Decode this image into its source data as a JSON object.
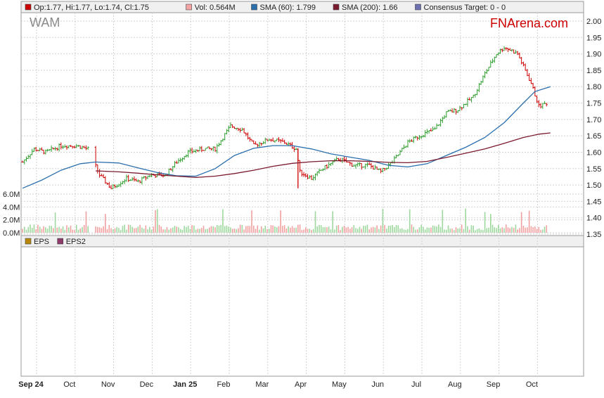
{
  "ticker": "WAM",
  "brand": "FNArena.com",
  "price_legend": [
    {
      "label": "Op:1.77, Hi:1.77, Lo:1.74, Cl:1.75",
      "color": "#cc0000"
    },
    {
      "label": "Vol: 0.564M",
      "color": "#f4a3a3"
    },
    {
      "label": "SMA (60): 1.799",
      "color": "#2b6fad"
    },
    {
      "label": "SMA (200): 1.66",
      "color": "#7a1a2e"
    },
    {
      "label": "Consensus Target: 0 - 0",
      "color": "#6c6fb0"
    }
  ],
  "eps_legend": [
    {
      "label": "EPS",
      "color": "#b8860b"
    },
    {
      "label": "EPS2",
      "color": "#8e3a6a"
    }
  ],
  "colors": {
    "up": "#2e9e2e",
    "down": "#cc0000",
    "sma60": "#2b6fad",
    "sma200": "#7a1a2e",
    "grid": "#d2d2d2",
    "vol_up": "#9fd89f",
    "vol_down": "#f1a1a1"
  },
  "chart_data": {
    "type": "line",
    "title": "WAM",
    "x_labels": [
      "Sep 24",
      "Oct",
      "Nov",
      "Dec",
      "Jan 25",
      "Feb",
      "Mar",
      "Apr",
      "May",
      "Jun",
      "Jul",
      "Aug",
      "Sep",
      "Oct"
    ],
    "x_bold_labels": [
      "Sep 24",
      "Jan 25"
    ],
    "y_ticks": [
      "2.00",
      "1.95",
      "1.90",
      "1.85",
      "1.80",
      "1.75",
      "1.70",
      "1.65",
      "1.60",
      "1.55",
      "1.50",
      "1.45",
      "1.40",
      "1.35"
    ],
    "ylim": [
      1.35,
      2.0
    ],
    "volume_ticks": [
      "6.0M",
      "4.0M",
      "2.0M",
      "0.0M"
    ],
    "volume_ylim": [
      0,
      6
    ],
    "grid": true,
    "price_close": [
      {
        "x": 0,
        "y": 1.57
      },
      {
        "x": 0.3,
        "y": 1.61
      },
      {
        "x": 0.6,
        "y": 1.6
      },
      {
        "x": 1,
        "y": 1.62
      },
      {
        "x": 1.4,
        "y": 1.62
      },
      {
        "x": 1.7,
        "y": 1.61
      },
      {
        "x": 2.0,
        "y": 1.53
      },
      {
        "x": 2.3,
        "y": 1.49
      },
      {
        "x": 2.7,
        "y": 1.52
      },
      {
        "x": 3.0,
        "y": 1.51
      },
      {
        "x": 3.3,
        "y": 1.53
      },
      {
        "x": 3.7,
        "y": 1.53
      },
      {
        "x": 4.0,
        "y": 1.57
      },
      {
        "x": 4.3,
        "y": 1.6
      },
      {
        "x": 4.7,
        "y": 1.61
      },
      {
        "x": 5.0,
        "y": 1.61
      },
      {
        "x": 5.4,
        "y": 1.68
      },
      {
        "x": 5.7,
        "y": 1.67
      },
      {
        "x": 6.0,
        "y": 1.62
      },
      {
        "x": 6.4,
        "y": 1.64
      },
      {
        "x": 6.8,
        "y": 1.63
      },
      {
        "x": 7.1,
        "y": 1.61
      },
      {
        "x": 7.2,
        "y": 1.54
      },
      {
        "x": 7.5,
        "y": 1.52
      },
      {
        "x": 7.8,
        "y": 1.55
      },
      {
        "x": 8.2,
        "y": 1.58
      },
      {
        "x": 8.6,
        "y": 1.56
      },
      {
        "x": 9.0,
        "y": 1.56
      },
      {
        "x": 9.3,
        "y": 1.54
      },
      {
        "x": 9.6,
        "y": 1.57
      },
      {
        "x": 10.0,
        "y": 1.63
      },
      {
        "x": 10.3,
        "y": 1.65
      },
      {
        "x": 10.7,
        "y": 1.67
      },
      {
        "x": 11.0,
        "y": 1.72
      },
      {
        "x": 11.3,
        "y": 1.73
      },
      {
        "x": 11.7,
        "y": 1.77
      },
      {
        "x": 12.0,
        "y": 1.84
      },
      {
        "x": 12.3,
        "y": 1.9
      },
      {
        "x": 12.5,
        "y": 1.92
      },
      {
        "x": 12.7,
        "y": 1.91
      },
      {
        "x": 12.85,
        "y": 1.9
      },
      {
        "x": 13.2,
        "y": 1.81
      },
      {
        "x": 13.4,
        "y": 1.74
      },
      {
        "x": 13.6,
        "y": 1.75
      }
    ],
    "sma60": [
      {
        "x": 0,
        "y": 1.49
      },
      {
        "x": 0.5,
        "y": 1.515
      },
      {
        "x": 1,
        "y": 1.545
      },
      {
        "x": 1.5,
        "y": 1.565
      },
      {
        "x": 1.9,
        "y": 1.57
      },
      {
        "x": 2.5,
        "y": 1.567
      },
      {
        "x": 3.0,
        "y": 1.552
      },
      {
        "x": 3.5,
        "y": 1.538
      },
      {
        "x": 4.0,
        "y": 1.528
      },
      {
        "x": 4.5,
        "y": 1.527
      },
      {
        "x": 5.0,
        "y": 1.55
      },
      {
        "x": 5.5,
        "y": 1.59
      },
      {
        "x": 6.0,
        "y": 1.612
      },
      {
        "x": 6.5,
        "y": 1.62
      },
      {
        "x": 7.0,
        "y": 1.62
      },
      {
        "x": 7.5,
        "y": 1.61
      },
      {
        "x": 8.0,
        "y": 1.595
      },
      {
        "x": 8.5,
        "y": 1.585
      },
      {
        "x": 9.0,
        "y": 1.575
      },
      {
        "x": 9.5,
        "y": 1.56
      },
      {
        "x": 10.0,
        "y": 1.555
      },
      {
        "x": 10.5,
        "y": 1.565
      },
      {
        "x": 11.0,
        "y": 1.59
      },
      {
        "x": 11.5,
        "y": 1.615
      },
      {
        "x": 12.0,
        "y": 1.645
      },
      {
        "x": 12.5,
        "y": 1.69
      },
      {
        "x": 13.0,
        "y": 1.75
      },
      {
        "x": 13.3,
        "y": 1.785
      },
      {
        "x": 13.7,
        "y": 1.8
      }
    ],
    "sma200": [
      {
        "x": 1.9,
        "y": 1.543
      },
      {
        "x": 2.5,
        "y": 1.54
      },
      {
        "x": 3.0,
        "y": 1.536
      },
      {
        "x": 3.5,
        "y": 1.531
      },
      {
        "x": 4.0,
        "y": 1.527
      },
      {
        "x": 4.5,
        "y": 1.523
      },
      {
        "x": 5.0,
        "y": 1.527
      },
      {
        "x": 5.5,
        "y": 1.535
      },
      {
        "x": 6.0,
        "y": 1.545
      },
      {
        "x": 6.5,
        "y": 1.557
      },
      {
        "x": 7.0,
        "y": 1.566
      },
      {
        "x": 7.5,
        "y": 1.571
      },
      {
        "x": 8.0,
        "y": 1.574
      },
      {
        "x": 8.5,
        "y": 1.574
      },
      {
        "x": 9.0,
        "y": 1.572
      },
      {
        "x": 9.5,
        "y": 1.569
      },
      {
        "x": 10.0,
        "y": 1.568
      },
      {
        "x": 10.5,
        "y": 1.572
      },
      {
        "x": 11.0,
        "y": 1.584
      },
      {
        "x": 11.5,
        "y": 1.597
      },
      {
        "x": 12.0,
        "y": 1.61
      },
      {
        "x": 12.5,
        "y": 1.627
      },
      {
        "x": 13.0,
        "y": 1.645
      },
      {
        "x": 13.4,
        "y": 1.655
      },
      {
        "x": 13.7,
        "y": 1.659
      }
    ]
  }
}
